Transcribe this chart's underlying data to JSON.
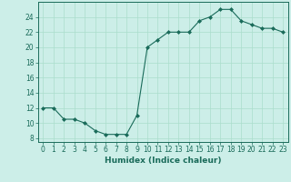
{
  "x": [
    0,
    1,
    2,
    3,
    4,
    5,
    6,
    7,
    8,
    9,
    10,
    11,
    12,
    13,
    14,
    15,
    16,
    17,
    18,
    19,
    20,
    21,
    22,
    23
  ],
  "y": [
    12,
    12,
    10.5,
    10.5,
    10,
    9,
    8.5,
    8.5,
    8.5,
    11,
    20,
    21,
    22,
    22,
    22,
    23.5,
    24,
    25,
    25,
    23.5,
    23,
    22.5,
    22.5,
    22
  ],
  "line_color": "#1a6b5a",
  "marker": "D",
  "marker_size": 2.0,
  "bg_color": "#cceee8",
  "grid_color": "#aaddcc",
  "xlabel": "Humidex (Indice chaleur)",
  "ylabel": "",
  "xlim": [
    -0.5,
    23.5
  ],
  "ylim": [
    7.5,
    26
  ],
  "yticks": [
    8,
    10,
    12,
    14,
    16,
    18,
    20,
    22,
    24
  ],
  "xticks": [
    0,
    1,
    2,
    3,
    4,
    5,
    6,
    7,
    8,
    9,
    10,
    11,
    12,
    13,
    14,
    15,
    16,
    17,
    18,
    19,
    20,
    21,
    22,
    23
  ],
  "label_fontsize": 6.5,
  "tick_fontsize": 5.5
}
